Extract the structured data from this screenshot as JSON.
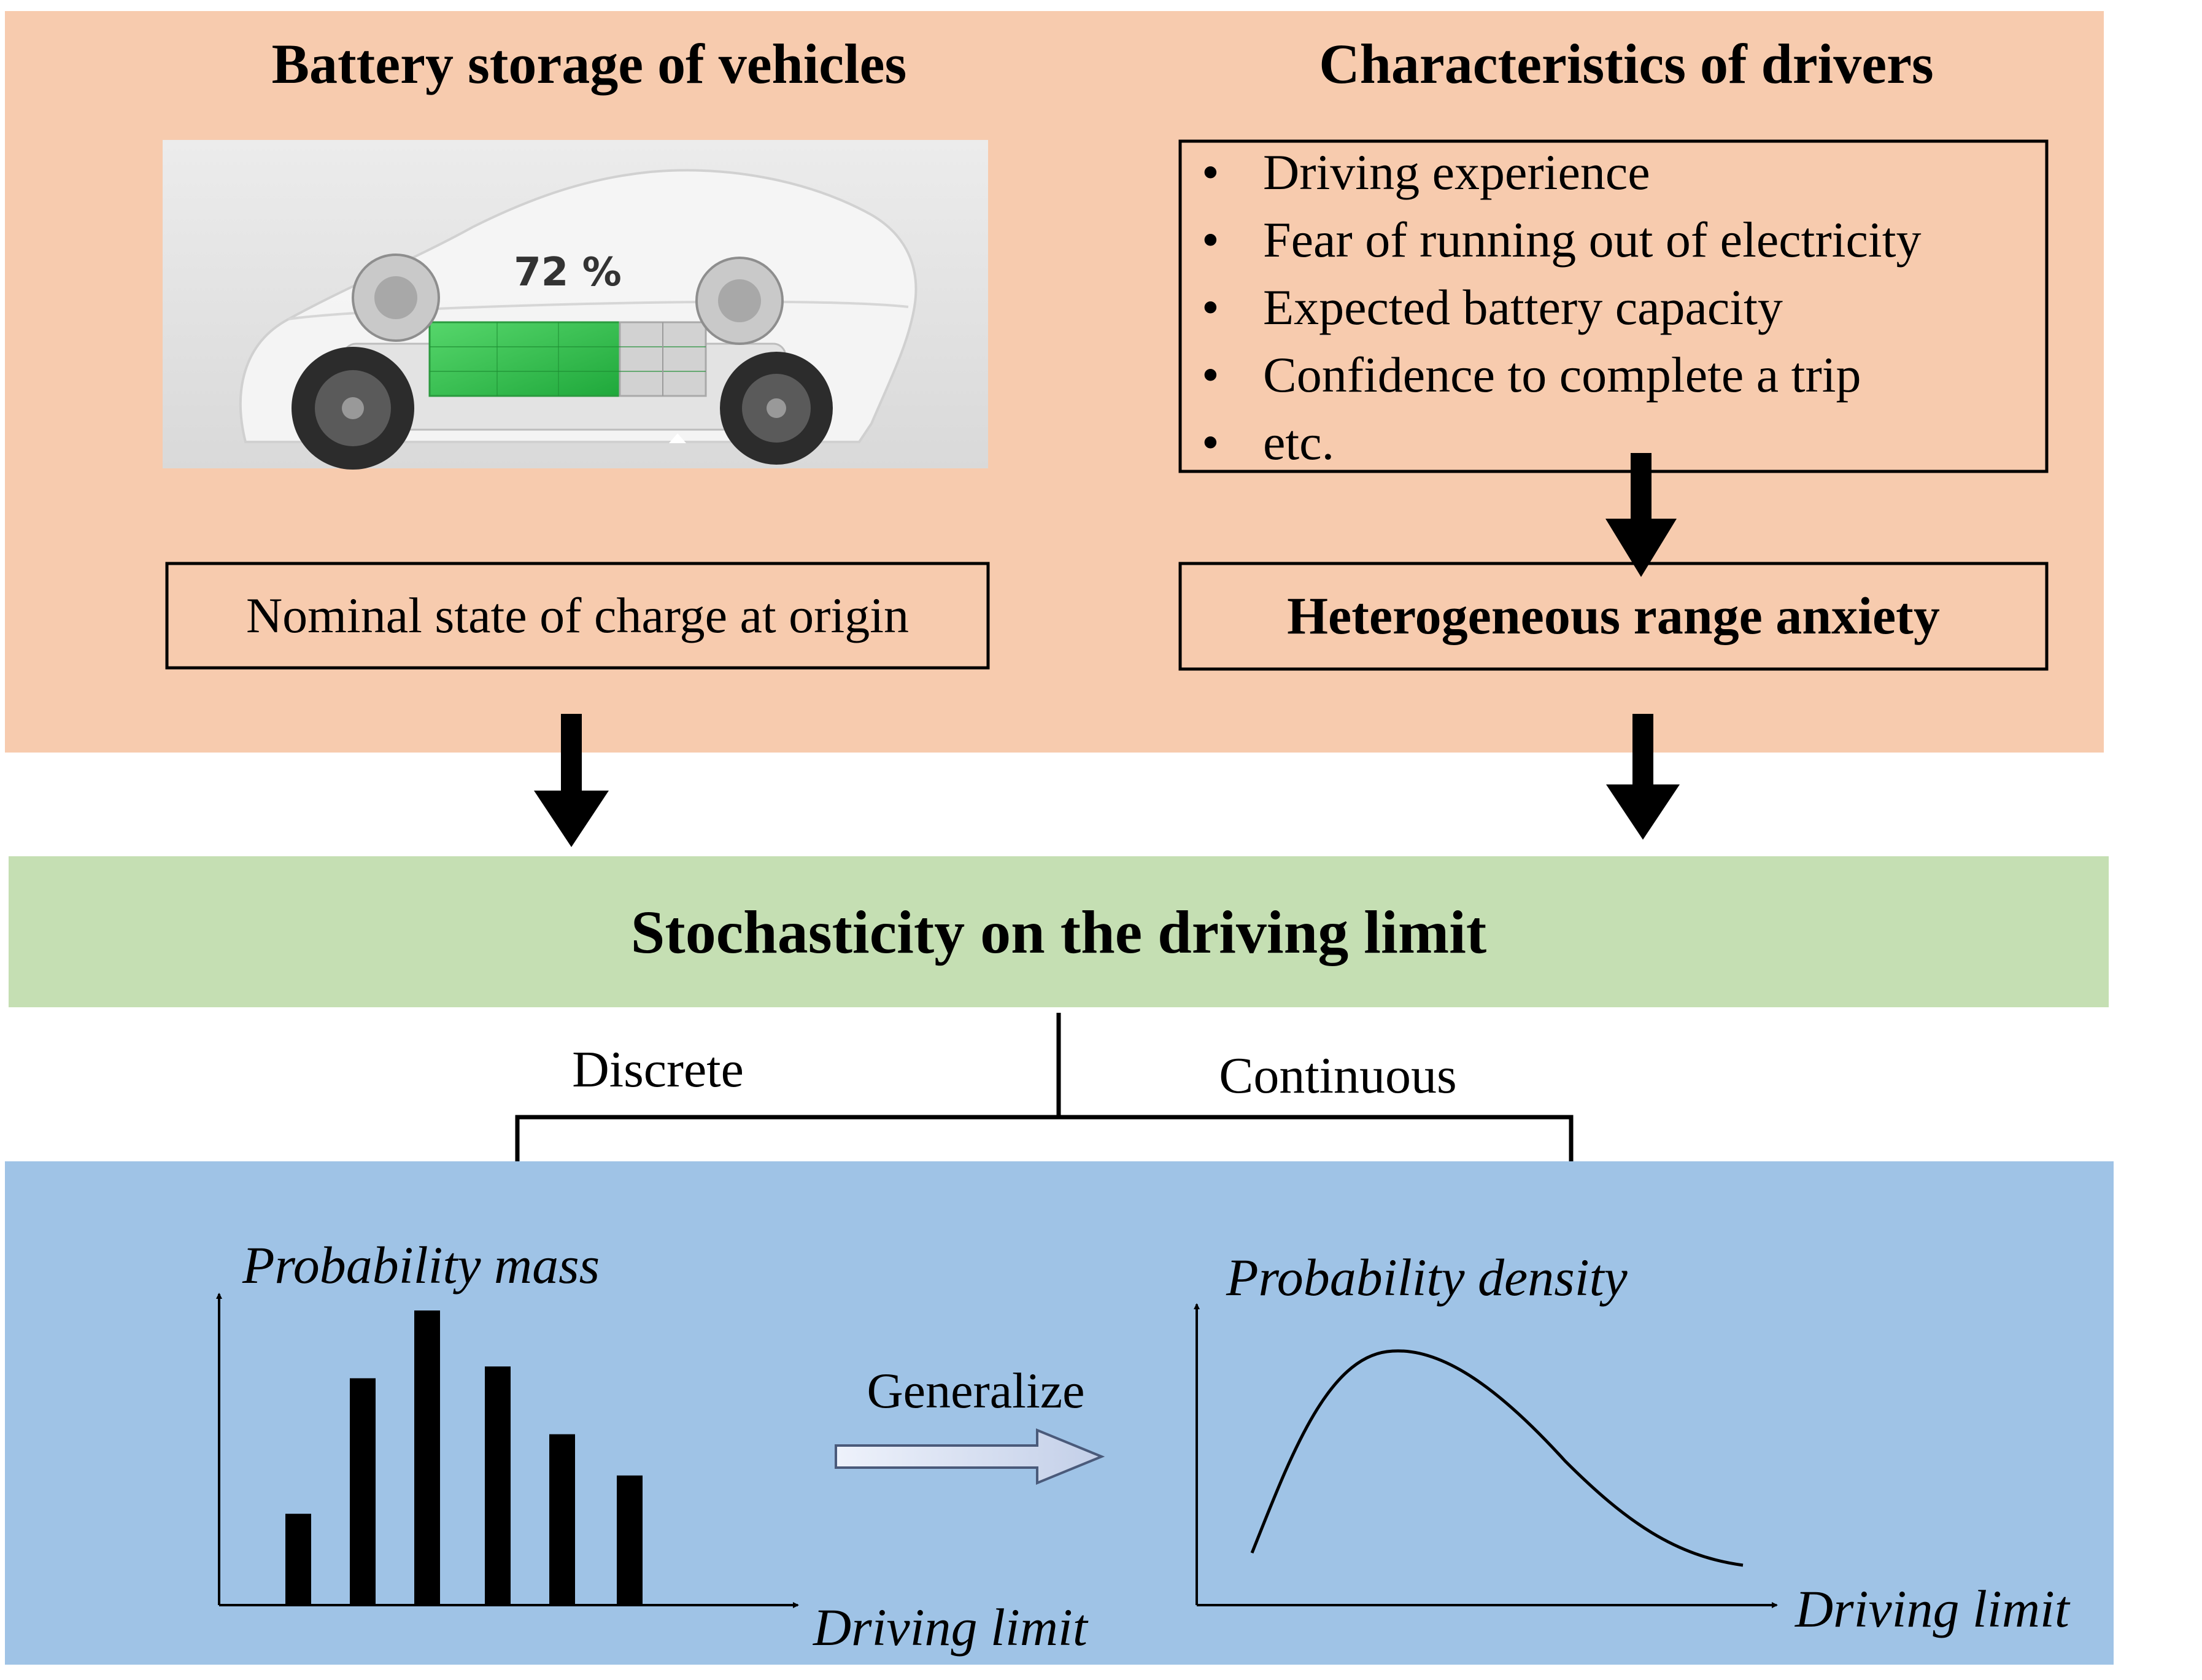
{
  "top_left": {
    "title": "Battery storage of vehicles",
    "soc_display": "72 %",
    "box_label": "Nominal state of charge at origin"
  },
  "top_right": {
    "title": "Characteristics of drivers",
    "bullets": [
      "Driving experience",
      "Fear of running out of electricity",
      "Expected battery capacity",
      "Confidence to complete a trip",
      "etc."
    ],
    "box_label": "Heterogeneous range anxiety"
  },
  "middle": {
    "label": "Stochasticity on the driving limit",
    "branch_left": "Discrete",
    "branch_right": "Continuous"
  },
  "bottom_left": {
    "ylabel": "Probability mass",
    "xlabel": "Driving limit",
    "bar_values": [
      0.31,
      0.77,
      1.0,
      0.81,
      0.58,
      0.44
    ]
  },
  "generalize_label": "Generalize",
  "bottom_right": {
    "ylabel": "Probability density",
    "xlabel": "Driving limit"
  },
  "colors": {
    "top_panel": "#f7cbae",
    "middle_band": "#c5dfb3",
    "bottom_panel": "#9fc3e6",
    "battery_green": "#2fbf4f"
  }
}
